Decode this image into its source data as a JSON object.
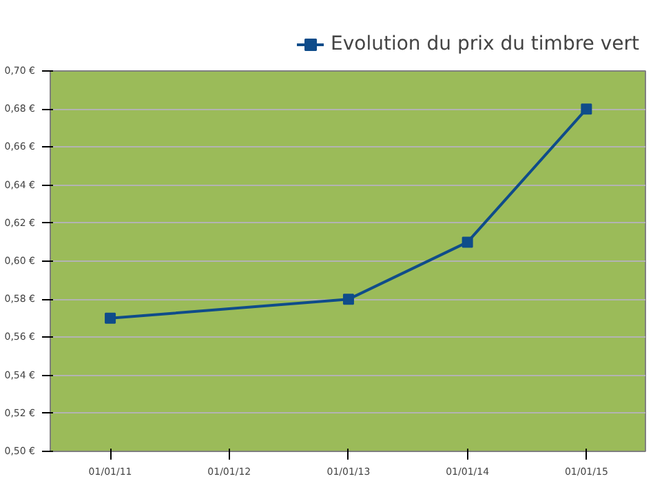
{
  "chart_data": {
    "type": "line",
    "x": [
      "2011-01-01",
      "2013-01-01",
      "2014-01-01",
      "2015-01-01"
    ],
    "series": [
      {
        "name": "Evolution du prix du timbre vert",
        "color": "#0f4c8a",
        "values": [
          0.57,
          0.58,
          0.61,
          0.68
        ]
      }
    ],
    "xlim": [
      "2010-07-01",
      "2015-07-01"
    ],
    "xticks": [
      {
        "value": "2011-01-01",
        "label": "01/01/11"
      },
      {
        "value": "2012-01-01",
        "label": "01/01/12"
      },
      {
        "value": "2013-01-01",
        "label": "01/01/13"
      },
      {
        "value": "2014-01-01",
        "label": "01/01/14"
      },
      {
        "value": "2015-01-01",
        "label": "01/01/15"
      }
    ],
    "ylim": [
      0.5,
      0.7
    ],
    "yticks": [
      {
        "value": 0.5,
        "label": "0,50 €"
      },
      {
        "value": 0.52,
        "label": "0,52 €"
      },
      {
        "value": 0.54,
        "label": "0,54 €"
      },
      {
        "value": 0.56,
        "label": "0,56 €"
      },
      {
        "value": 0.58,
        "label": "0,58 €"
      },
      {
        "value": 0.6,
        "label": "0,60 €"
      },
      {
        "value": 0.62,
        "label": "0,62 €"
      },
      {
        "value": 0.64,
        "label": "0,64 €"
      },
      {
        "value": 0.66,
        "label": "0,66 €"
      },
      {
        "value": 0.68,
        "label": "0,68 €"
      },
      {
        "value": 0.7,
        "label": "0,70 €"
      }
    ],
    "grid": "y",
    "legend": "top right",
    "marker": "square",
    "line_style": "solid"
  }
}
